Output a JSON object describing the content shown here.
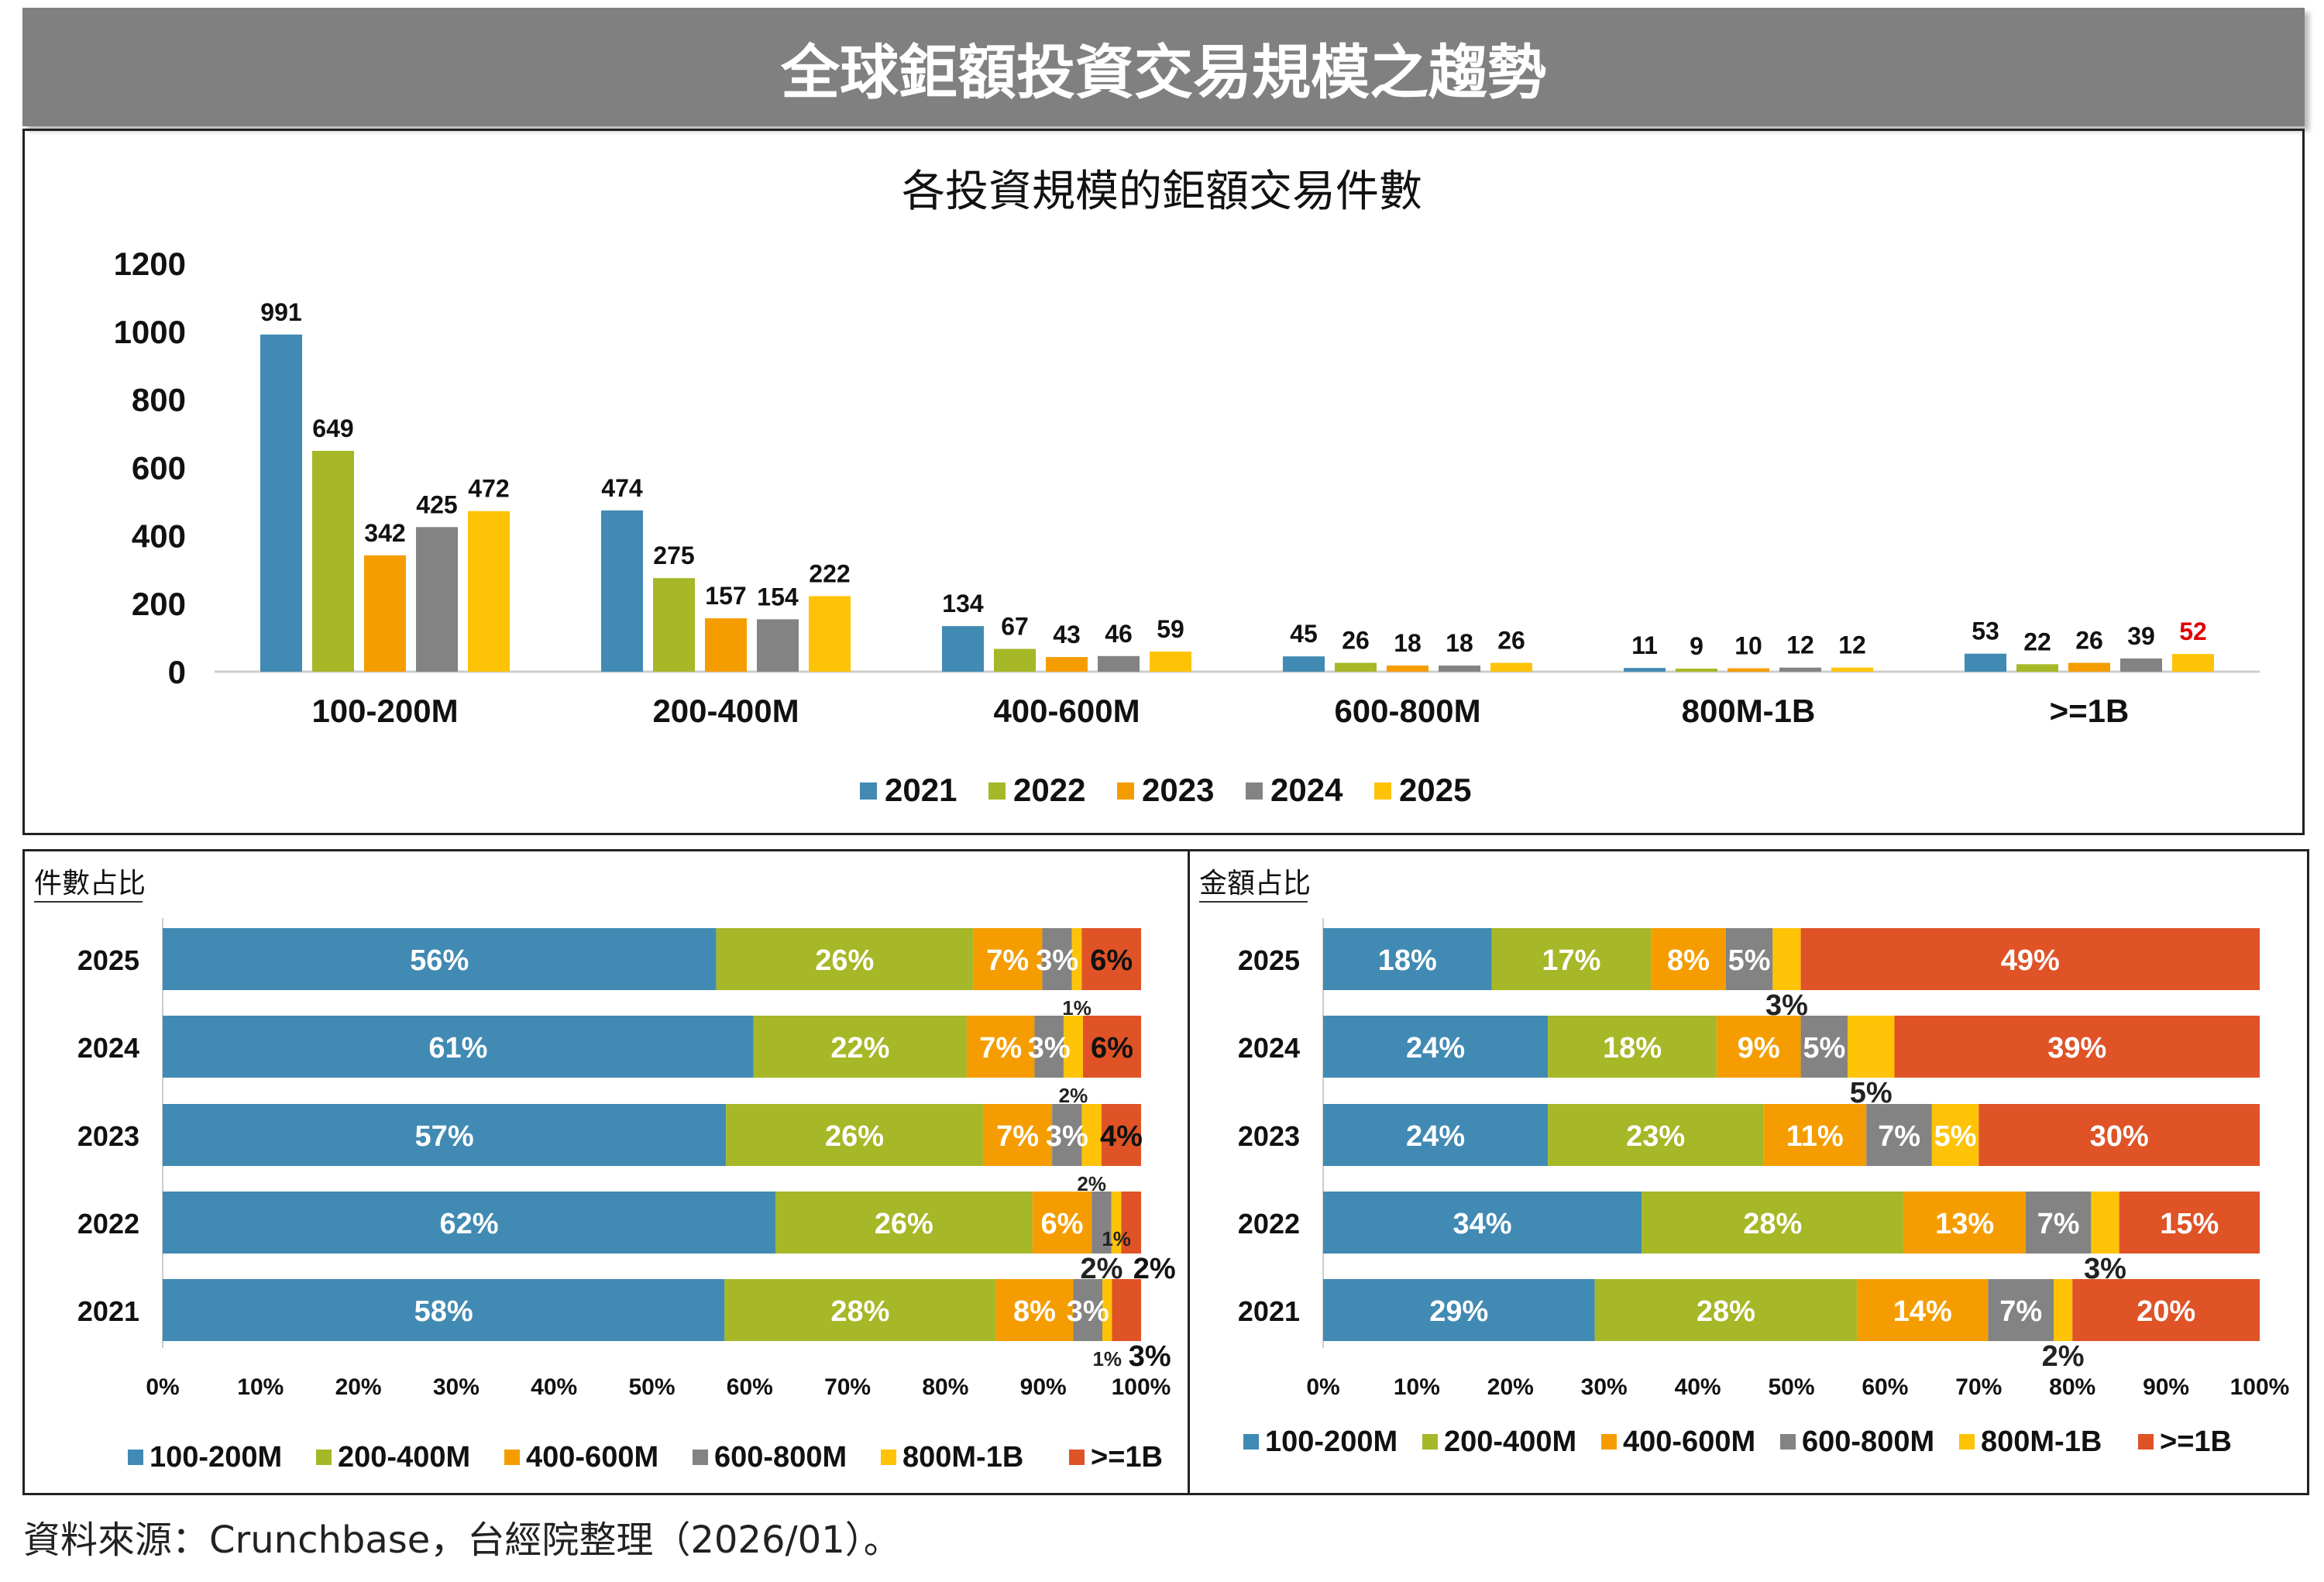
{
  "header": {
    "title": "全球鉅額投資交易規模之趨勢"
  },
  "source": "資料來源：Crunchbase，台經院整理（2026/01）。",
  "colors": {
    "100-200M": "#418AB3",
    "200-400M": "#A6B727",
    "400-600M": "#F59D00",
    "600-800M": "#838383",
    "800M-1B": "#FEC306",
    ">=1B": "#DF5327",
    "2021": "#418AB3",
    "2022": "#A6B727",
    "2023": "#F59D00",
    "2024": "#838383",
    "2025": "#FEC306",
    "highlight_label": "#E00000"
  },
  "chart_data": [
    {
      "type": "bar",
      "title": "各投資規模的鉅額交易件數",
      "categories": [
        "100-200M",
        "200-400M",
        "400-600M",
        "600-800M",
        "800M-1B",
        ">=1B"
      ],
      "series": [
        {
          "name": "2021",
          "values": [
            991,
            474,
            134,
            45,
            11,
            53
          ]
        },
        {
          "name": "2022",
          "values": [
            649,
            275,
            67,
            26,
            9,
            22
          ]
        },
        {
          "name": "2023",
          "values": [
            342,
            157,
            43,
            18,
            10,
            26
          ]
        },
        {
          "name": "2024",
          "values": [
            425,
            154,
            46,
            18,
            12,
            39
          ]
        },
        {
          "name": "2025",
          "values": [
            472,
            222,
            59,
            26,
            12,
            52
          ]
        }
      ],
      "yticks": [
        "0",
        "200",
        "400",
        "600",
        "800",
        "1000",
        "1200"
      ],
      "ylim": [
        0,
        1200
      ],
      "highlighted_label": {
        "series": "2025",
        "category": ">=1B"
      },
      "legend_position": "bottom"
    },
    {
      "type": "bar",
      "stacked": "100%",
      "orientation": "horizontal",
      "title": "件數占比",
      "categories": [
        "2025",
        "2024",
        "2023",
        "2022",
        "2021"
      ],
      "series": [
        {
          "name": "100-200M",
          "values": [
            56,
            61,
            57,
            62,
            58
          ]
        },
        {
          "name": "200-400M",
          "values": [
            26,
            22,
            26,
            26,
            28
          ]
        },
        {
          "name": "400-600M",
          "values": [
            7,
            7,
            7,
            6,
            8
          ]
        },
        {
          "name": "600-800M",
          "values": [
            3,
            3,
            3,
            2,
            3
          ]
        },
        {
          "name": "800M-1B",
          "values": [
            1,
            2,
            2,
            1,
            1
          ]
        },
        {
          "name": ">=1B",
          "values": [
            6,
            6,
            4,
            2,
            3
          ]
        }
      ],
      "xticks": [
        "0%",
        "10%",
        "20%",
        "30%",
        "40%",
        "50%",
        "60%",
        "70%",
        "80%",
        "90%",
        "100%"
      ],
      "xlim": [
        0,
        100
      ],
      "legend_position": "bottom"
    },
    {
      "type": "bar",
      "stacked": "100%",
      "orientation": "horizontal",
      "title": "金額占比",
      "categories": [
        "2025",
        "2024",
        "2023",
        "2022",
        "2021"
      ],
      "series": [
        {
          "name": "100-200M",
          "values": [
            18,
            24,
            24,
            34,
            29
          ]
        },
        {
          "name": "200-400M",
          "values": [
            17,
            18,
            23,
            28,
            28
          ]
        },
        {
          "name": "400-600M",
          "values": [
            8,
            9,
            11,
            13,
            14
          ]
        },
        {
          "name": "600-800M",
          "values": [
            5,
            5,
            7,
            7,
            7
          ]
        },
        {
          "name": "800M-1B",
          "values": [
            3,
            5,
            5,
            3,
            2
          ]
        },
        {
          "name": ">=1B",
          "values": [
            49,
            39,
            30,
            15,
            20
          ]
        }
      ],
      "xticks": [
        "0%",
        "10%",
        "20%",
        "30%",
        "40%",
        "50%",
        "60%",
        "70%",
        "80%",
        "90%",
        "100%"
      ],
      "xlim": [
        0,
        100
      ],
      "legend_position": "bottom"
    }
  ]
}
